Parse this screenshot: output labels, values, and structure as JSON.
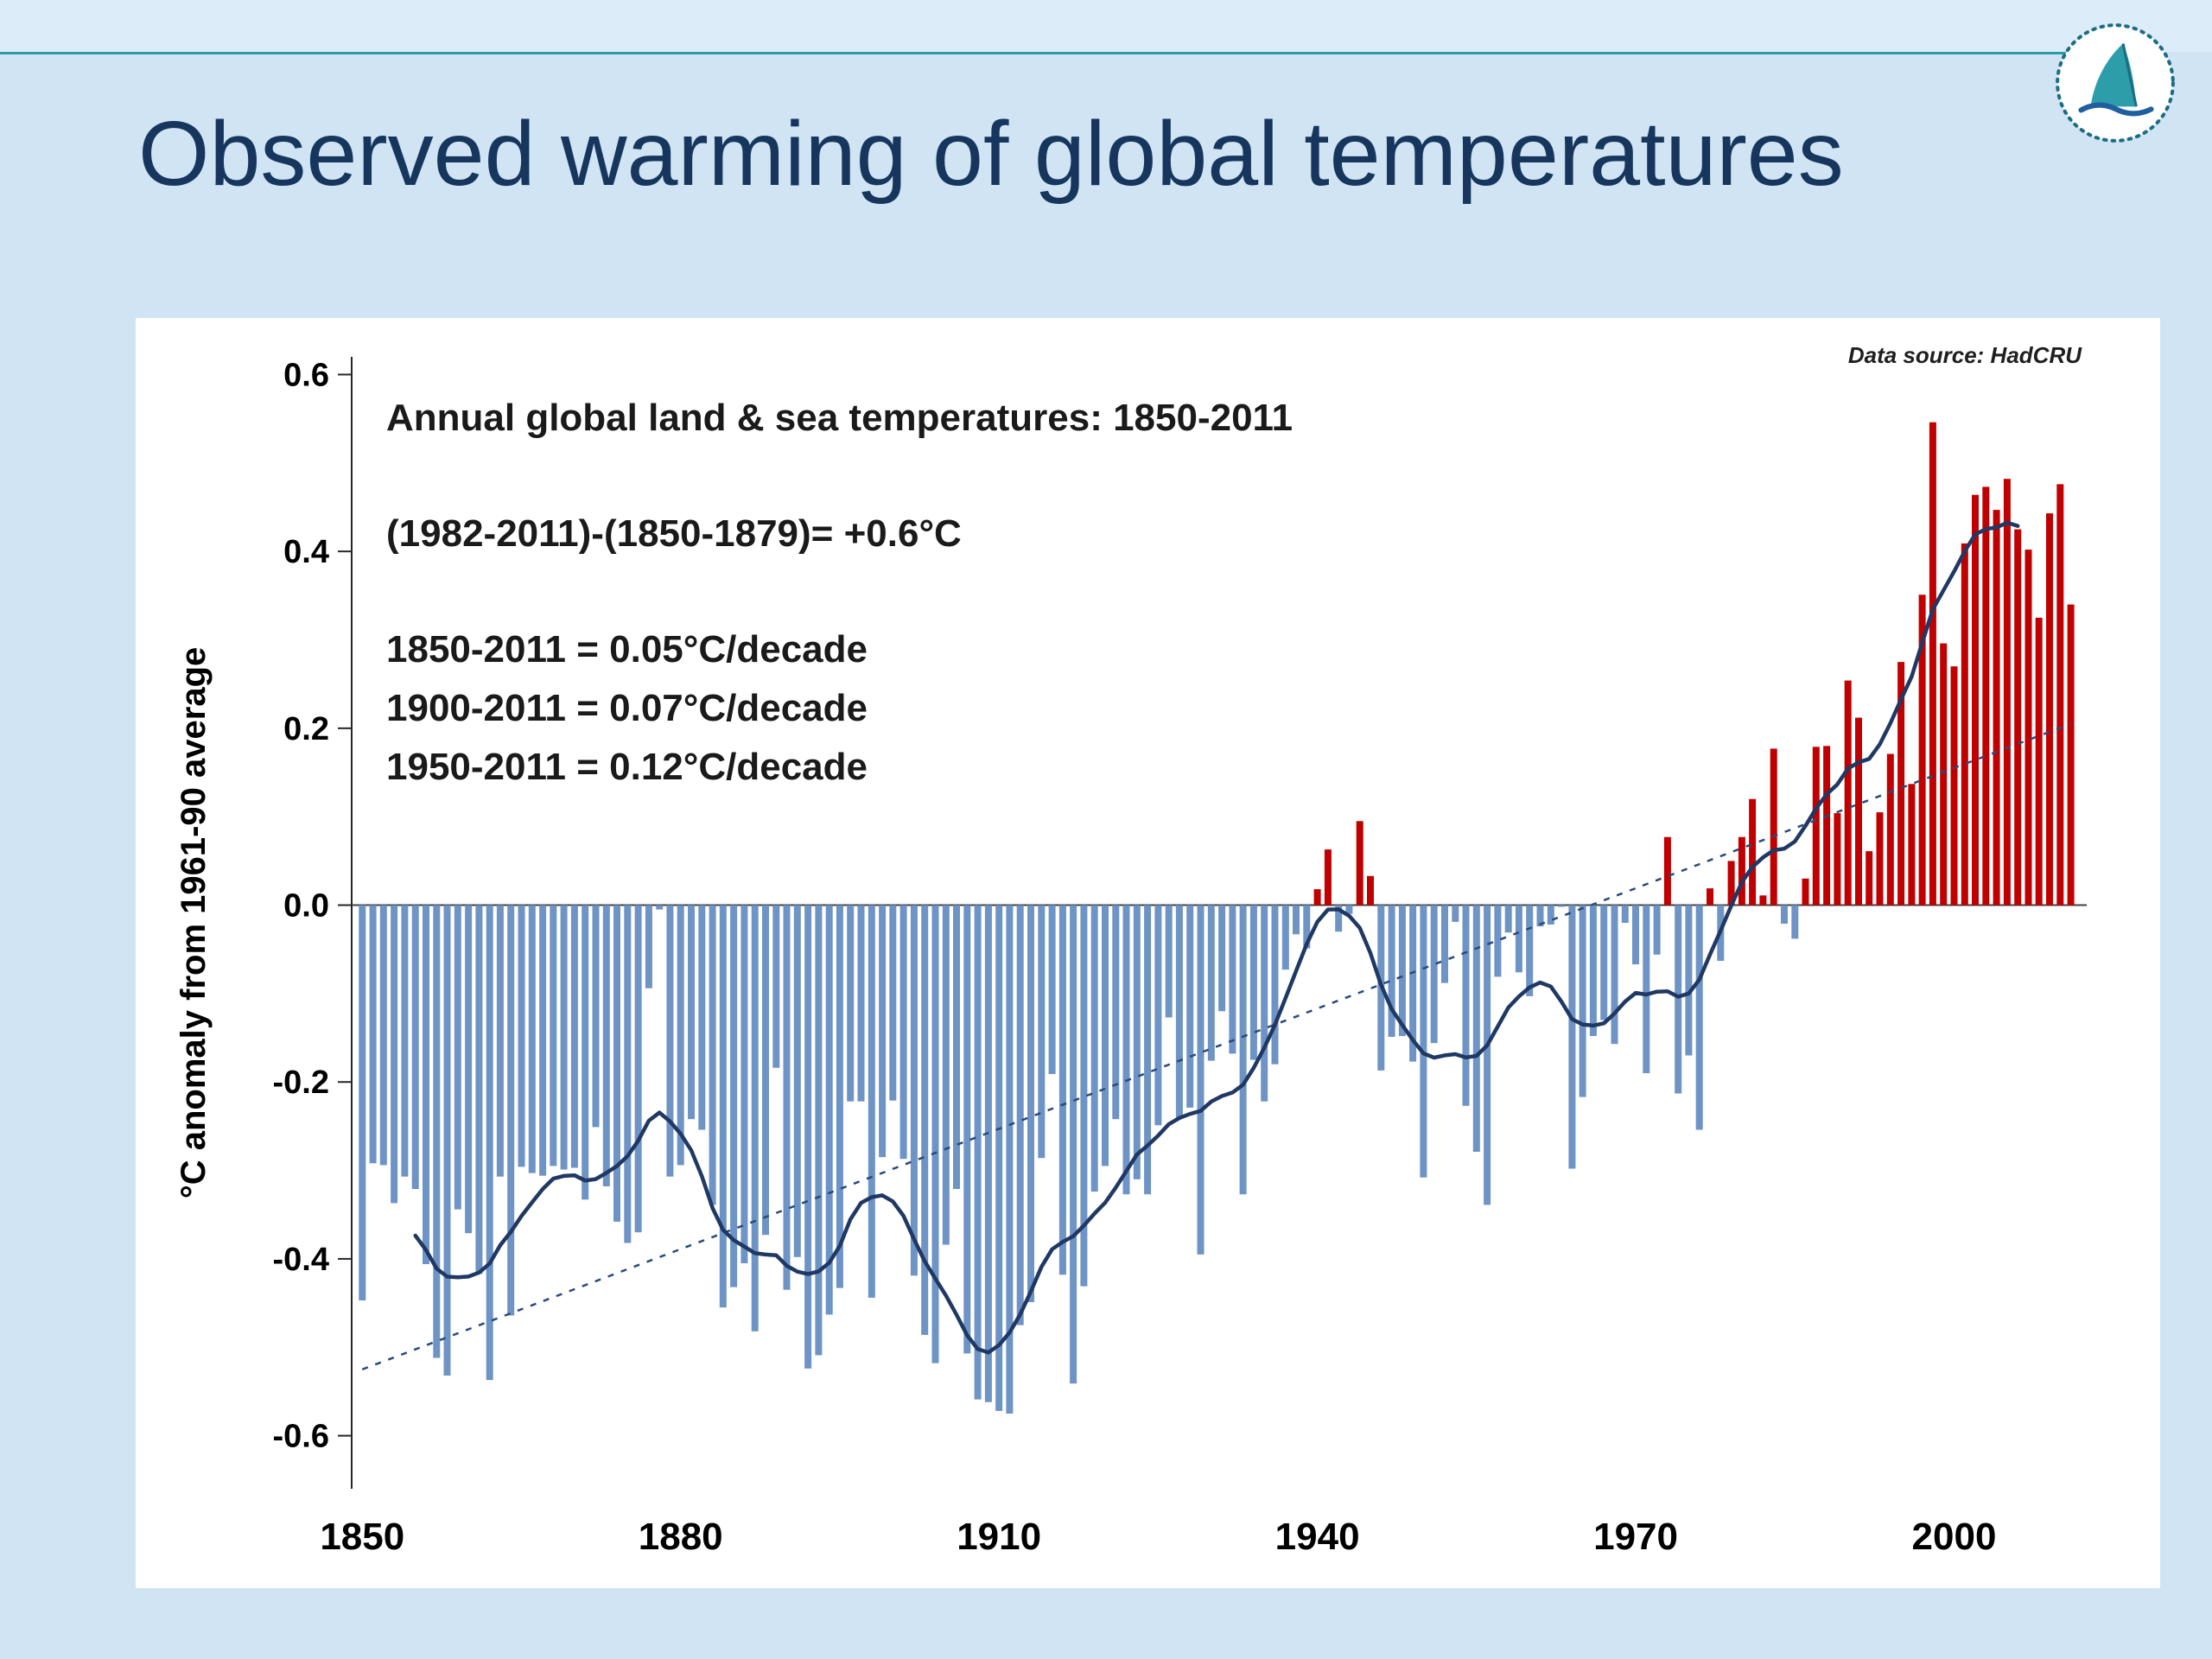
{
  "slide": {
    "title": "Observed warming of global temperatures",
    "accent_line_color": "#2a9ba5",
    "background_color": "#d0e4f4",
    "title_color": "#17365d",
    "logo_icon": "sailboat-compass-logo"
  },
  "chart_data": {
    "type": "bar",
    "title": "Annual global land & sea temperatures: 1850-2011",
    "data_source_label": "Data source:  HadCRU",
    "annotations": [
      "(1982-2011)-(1850-1879)= +0.6°C",
      "1850-2011 = 0.05°C/decade",
      "1900-2011 = 0.07°C/decade",
      "1950-2011 = 0.12°C/decade"
    ],
    "xlabel": "",
    "ylabel": "°C anomaly from 1961-90 average",
    "ylim": [
      -0.66,
      0.62
    ],
    "y_ticks": [
      0.6,
      0.4,
      0.2,
      0,
      -0.2,
      -0.4,
      -0.6
    ],
    "x_ticks": [
      1850,
      1880,
      1910,
      1940,
      1970,
      2000
    ],
    "legend": "none",
    "grid": false,
    "start_year": 1850,
    "end_year": 2011,
    "smoothing_window": 11,
    "trend_line": {
      "x0": 1850,
      "y0": -0.525,
      "x1": 2011,
      "y1": 0.205
    },
    "colors": {
      "positive_bar": "#c00000",
      "negative_bar": "#6e93c5",
      "smoothed_line": "#1f3864",
      "trend_line": "#2a4a7a",
      "axis": "#262626"
    },
    "values": [
      -0.447,
      -0.292,
      -0.294,
      -0.337,
      -0.307,
      -0.321,
      -0.406,
      -0.512,
      -0.532,
      -0.344,
      -0.371,
      -0.417,
      -0.537,
      -0.307,
      -0.464,
      -0.296,
      -0.303,
      -0.306,
      -0.295,
      -0.299,
      -0.297,
      -0.333,
      -0.251,
      -0.318,
      -0.358,
      -0.382,
      -0.37,
      -0.094,
      -0.005,
      -0.307,
      -0.294,
      -0.242,
      -0.254,
      -0.339,
      -0.455,
      -0.432,
      -0.405,
      -0.482,
      -0.373,
      -0.184,
      -0.435,
      -0.398,
      -0.524,
      -0.509,
      -0.463,
      -0.433,
      -0.222,
      -0.222,
      -0.444,
      -0.285,
      -0.221,
      -0.287,
      -0.419,
      -0.486,
      -0.518,
      -0.384,
      -0.321,
      -0.507,
      -0.559,
      -0.562,
      -0.572,
      -0.575,
      -0.475,
      -0.449,
      -0.286,
      -0.191,
      -0.418,
      -0.541,
      -0.431,
      -0.324,
      -0.295,
      -0.242,
      -0.327,
      -0.31,
      -0.327,
      -0.249,
      -0.127,
      -0.241,
      -0.229,
      -0.395,
      -0.176,
      -0.12,
      -0.168,
      -0.327,
      -0.175,
      -0.222,
      -0.18,
      -0.073,
      -0.033,
      -0.049,
      0.018,
      0.063,
      -0.03,
      -0.01,
      0.095,
      0.033,
      -0.187,
      -0.149,
      -0.148,
      -0.177,
      -0.308,
      -0.156,
      -0.088,
      -0.019,
      -0.227,
      -0.279,
      -0.339,
      -0.081,
      -0.031,
      -0.076,
      -0.103,
      -0.024,
      -0.022,
      -0.002,
      -0.298,
      -0.217,
      -0.148,
      -0.13,
      -0.157,
      -0.02,
      -0.067,
      -0.19,
      -0.056,
      0.077,
      -0.213,
      -0.17,
      -0.254,
      0.019,
      -0.063,
      0.05,
      0.077,
      0.12,
      0.011,
      0.177,
      -0.021,
      -0.038,
      0.03,
      0.179,
      0.18,
      0.104,
      0.254,
      0.212,
      0.061,
      0.105,
      0.171,
      0.275,
      0.137,
      0.351,
      0.546,
      0.296,
      0.27,
      0.409,
      0.464,
      0.473,
      0.447,
      0.482,
      0.425,
      0.402,
      0.325,
      0.443,
      0.476,
      0.34
    ]
  }
}
